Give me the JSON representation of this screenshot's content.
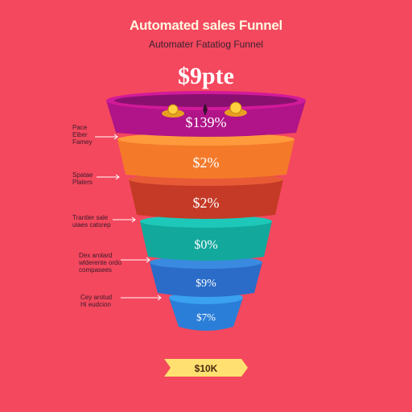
{
  "title": "Automated sales Funnel",
  "subtitle": "Automater Fatatiog Funnel",
  "headline_value": "$9pte",
  "stages": [
    {
      "value": "$139%",
      "color_top": "#d21a9a",
      "color_body": "#b01488",
      "label": [
        "Pace",
        "Eiber",
        "Famey"
      ]
    },
    {
      "value": "$2%",
      "color_top": "#ff9a3c",
      "color_body": "#f47a2a",
      "label": [
        "Spatae",
        "Platers"
      ]
    },
    {
      "value": "$2%",
      "color_top": "#e85a36",
      "color_body": "#c43a26",
      "label": [
        "Trantier sale",
        "uiaes catsrep"
      ]
    },
    {
      "value": "$0%",
      "color_top": "#1ec8b8",
      "color_body": "#12a89c",
      "label": [
        "Dex arolard",
        "wlderente ordo",
        "compasees"
      ]
    },
    {
      "value": "$9%",
      "color_top": "#3a8ae0",
      "color_body": "#2a6cc8",
      "label": [
        "Cey arotud",
        "Hi eudcion"
      ]
    },
    {
      "value": "$7%",
      "color_top": "#3aa0f0",
      "color_body": "#2a7ed8",
      "label": []
    }
  ],
  "badge": {
    "text": "$10K",
    "color": "#ffe070"
  },
  "icons": [
    "coin-icon",
    "sparkle-icon",
    "coin-icon"
  ]
}
